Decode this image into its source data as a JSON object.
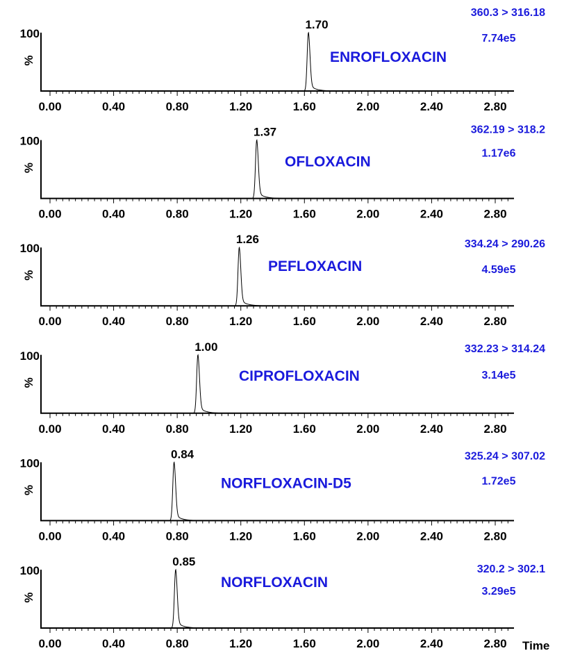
{
  "chart_data": [
    {
      "type": "line",
      "compound": "ENROFLOXACIN",
      "transition": "360.3 > 316.18",
      "intensity": "7.74e5",
      "peak_label": "1.70",
      "peak_x": 1.625,
      "y_top_label": "100",
      "y_unit": "%",
      "xlim": [
        0.0,
        2.98
      ],
      "ylim": [
        0,
        100
      ],
      "x_ticks": [
        "0.00",
        "0.40",
        "0.80",
        "1.20",
        "1.60",
        "2.00",
        "2.40",
        "2.80"
      ]
    },
    {
      "type": "line",
      "compound": "OFLOXACIN",
      "transition": "362.19 > 318.2",
      "intensity": "1.17e6",
      "peak_label": "1.37",
      "peak_x": 1.3,
      "y_top_label": "100",
      "y_unit": "%",
      "xlim": [
        0.0,
        2.98
      ],
      "ylim": [
        0,
        100
      ],
      "x_ticks": [
        "0.00",
        "0.40",
        "0.80",
        "1.20",
        "1.60",
        "2.00",
        "2.40",
        "2.80"
      ]
    },
    {
      "type": "line",
      "compound": "PEFLOXACIN",
      "transition": "334.24 > 290.26",
      "intensity": "4.59e5",
      "peak_label": "1.26",
      "peak_x": 1.19,
      "y_top_label": "100",
      "y_unit": "%",
      "xlim": [
        0.0,
        2.98
      ],
      "ylim": [
        0,
        100
      ],
      "x_ticks": [
        "0.00",
        "0.40",
        "0.80",
        "1.20",
        "1.60",
        "2.00",
        "2.40",
        "2.80"
      ]
    },
    {
      "type": "line",
      "compound": "CIPROFLOXACIN",
      "transition": "332.23 > 314.24",
      "intensity": "3.14e5",
      "peak_label": "1.00",
      "peak_x": 0.93,
      "y_top_label": "100",
      "y_unit": "%",
      "xlim": [
        0.0,
        2.98
      ],
      "ylim": [
        0,
        100
      ],
      "x_ticks": [
        "0.00",
        "0.40",
        "0.80",
        "1.20",
        "1.60",
        "2.00",
        "2.40",
        "2.80"
      ]
    },
    {
      "type": "line",
      "compound": "NORFLOXACIN-D5",
      "transition": "325.24 > 307.02",
      "intensity": "1.72e5",
      "peak_label": "0.84",
      "peak_x": 0.78,
      "y_top_label": "100",
      "y_unit": "%",
      "xlim": [
        0.0,
        2.98
      ],
      "ylim": [
        0,
        100
      ],
      "x_ticks": [
        "0.00",
        "0.40",
        "0.80",
        "1.20",
        "1.60",
        "2.00",
        "2.40",
        "2.80"
      ]
    },
    {
      "type": "line",
      "compound": "NORFLOXACIN",
      "transition": "320.2 > 302.1",
      "intensity": "3.29e5",
      "peak_label": "0.85",
      "peak_x": 0.79,
      "y_top_label": "100",
      "y_unit": "%",
      "xlim": [
        0.0,
        2.98
      ],
      "ylim": [
        0,
        100
      ],
      "x_ticks": [
        "0.00",
        "0.40",
        "0.80",
        "1.20",
        "1.60",
        "2.00",
        "2.40",
        "2.80"
      ],
      "xlabel": "Time"
    }
  ]
}
